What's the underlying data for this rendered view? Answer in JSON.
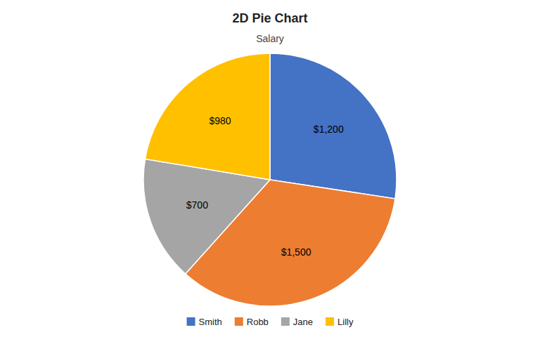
{
  "chart_data": {
    "type": "pie",
    "title": "2D Pie Chart",
    "subtitle": "Salary",
    "categories": [
      "Smith",
      "Robb",
      "Jane",
      "Lilly"
    ],
    "values": [
      1200,
      1500,
      700,
      980
    ],
    "value_labels": [
      "$1,200",
      "$1,500",
      "$700",
      "$980"
    ],
    "colors": [
      "#4472C4",
      "#ED7D31",
      "#A5A5A5",
      "#FFC000"
    ],
    "data_labels": true,
    "legend": "bottom"
  }
}
